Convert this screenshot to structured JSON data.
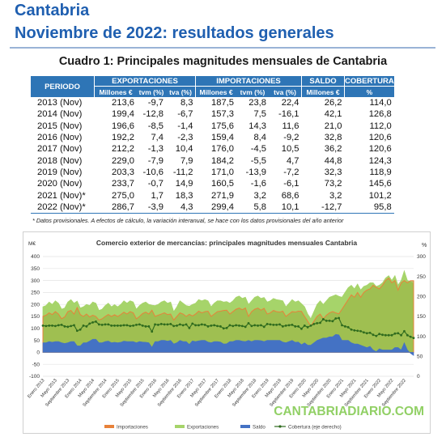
{
  "header": {
    "region": "Cantabria",
    "subtitle": "Noviembre de 2022: resultados generales",
    "table_title": "Cuadro 1: Principales magnitudes mensuales de Cantabria"
  },
  "table": {
    "group_headers": [
      "PERIODO",
      "EXPORTACIONES",
      "IMPORTACIONES",
      "SALDO",
      "COBERTURA"
    ],
    "sub_headers": [
      "Millones €",
      "tvm (%)",
      "tva (%)",
      "Millones €",
      "tvm (%)",
      "tva (%)",
      "Millones €",
      "%"
    ],
    "rows": [
      [
        "2013 (Nov)",
        "213,6",
        "-9,7",
        "8,3",
        "187,5",
        "23,8",
        "22,4",
        "26,2",
        "114,0"
      ],
      [
        "2014 (Nov)",
        "199,4",
        "-12,8",
        "-6,7",
        "157,3",
        "7,5",
        "-16,1",
        "42,1",
        "126,8"
      ],
      [
        "2015 (Nov)",
        "196,6",
        "-8,5",
        "-1,4",
        "175,6",
        "14,3",
        "11,6",
        "21,0",
        "112,0"
      ],
      [
        "2016 (Nov)",
        "192,2",
        "7,4",
        "-2,3",
        "159,4",
        "8,4",
        "-9,2",
        "32,8",
        "120,6"
      ],
      [
        "2017 (Nov)",
        "212,2",
        "-1,3",
        "10,4",
        "176,0",
        "-4,5",
        "10,5",
        "36,2",
        "120,6"
      ],
      [
        "2018 (Nov)",
        "229,0",
        "-7,9",
        "7,9",
        "184,2",
        "-5,5",
        "4,7",
        "44,8",
        "124,3"
      ],
      [
        "2019 (Nov)",
        "203,3",
        "-10,6",
        "-11,2",
        "171,0",
        "-13,9",
        "-7,2",
        "32,3",
        "118,9"
      ],
      [
        "2020 (Nov)",
        "233,7",
        "-0,7",
        "14,9",
        "160,5",
        "-1,6",
        "-6,1",
        "73,2",
        "145,6"
      ],
      [
        "2021 (Nov)*",
        "275,0",
        "1,7",
        "18,3",
        "271,9",
        "3,2",
        "68,6",
        "3,2",
        "101,2"
      ],
      [
        "2022 (Nov)*",
        "286,7",
        "-3,9",
        "4,3",
        "299,4",
        "5,8",
        "10,1",
        "-12,7",
        "95,8"
      ]
    ],
    "note": "* Datos provisionales. A efectos de cálculo, la variación interanual, se hace con los datos provisionales del año anterior"
  },
  "watermark": "CANTABRIADIARIO.COM",
  "colors": {
    "brand_blue": "#1f5fb0",
    "header_fill": "#2e75b6",
    "importaciones": "#e8823a",
    "exportaciones": "#a6d46a",
    "saldo": "#4472c4",
    "cobertura": "#2f6b1e",
    "watermark": "#7ec84a"
  },
  "chart_data": {
    "type": "area",
    "title": "Comercio exterior de mercancías: principales magnitudes mensuales Cantabria",
    "y_left_unit": "M€",
    "y_right_unit": "%",
    "y_left_ticks": [
      -100,
      -50,
      0,
      50,
      100,
      150,
      200,
      250,
      300,
      350,
      400
    ],
    "y_right_ticks": [
      0,
      50,
      100,
      150,
      200,
      250,
      300
    ],
    "ylim": [
      -100,
      400
    ],
    "ylim_right": [
      0,
      300
    ],
    "grid": true,
    "legend_position": "bottom",
    "x_start": "Enero 2013",
    "x_end": "Noviembre 2022",
    "x_labels": [
      "Enero 2013",
      "Mayo 2013",
      "Septiembre 2013",
      "Enero 2014",
      "Mayo 2014",
      "Septiembre 2014",
      "Enero 2015",
      "Mayo 2015",
      "Septiembre 2015",
      "Enero 2016",
      "Mayo 2016",
      "Septiembre 2016",
      "Enero 2017",
      "Mayo 2017",
      "Septiembre 2017",
      "Enero 2018",
      "Mayo 2018",
      "Septiembre 2018",
      "Enero 2019",
      "Mayo 2019",
      "Septiembre 2019",
      "Enero 2020",
      "Mayo 2020",
      "Septiembre 2020",
      "Enero 2021",
      "Mayo 2021",
      "Septiembre 2021",
      "Enero 2022",
      "Mayo 2022",
      "Septiembre 2022"
    ],
    "series": [
      {
        "name": "Importaciones",
        "axis": "left",
        "values": [
          150,
          155,
          165,
          158,
          170,
          160,
          140,
          148,
          170,
          175,
          160,
          187,
          158,
          150,
          160,
          148,
          155,
          150,
          135,
          140,
          150,
          158,
          150,
          157,
          150,
          158,
          168,
          160,
          170,
          165,
          140,
          150,
          162,
          168,
          160,
          176,
          150,
          155,
          160,
          165,
          158,
          160,
          135,
          150,
          165,
          160,
          150,
          159,
          152,
          160,
          172,
          165,
          170,
          172,
          150,
          160,
          170,
          172,
          175,
          176,
          160,
          170,
          180,
          185,
          178,
          185,
          150,
          170,
          180,
          185,
          176,
          184,
          160,
          165,
          175,
          170,
          168,
          172,
          150,
          160,
          170,
          168,
          172,
          171,
          150,
          130,
          110,
          130,
          150,
          160,
          140,
          155,
          165,
          170,
          165,
          161,
          180,
          200,
          220,
          240,
          230,
          250,
          230,
          250,
          260,
          265,
          280,
          272,
          265,
          280,
          300,
          310,
          290,
          300,
          260,
          290,
          300,
          290,
          299,
          299
        ]
      },
      {
        "name": "Exportaciones",
        "axis": "left",
        "values": [
          190,
          195,
          210,
          200,
          215,
          205,
          180,
          185,
          210,
          220,
          205,
          214,
          185,
          190,
          200,
          195,
          210,
          205,
          175,
          180,
          195,
          205,
          190,
          199,
          190,
          200,
          215,
          205,
          215,
          210,
          180,
          195,
          205,
          210,
          200,
          197,
          195,
          200,
          210,
          215,
          205,
          210,
          170,
          190,
          215,
          205,
          195,
          192,
          200,
          205,
          220,
          215,
          220,
          215,
          190,
          205,
          215,
          215,
          210,
          212,
          205,
          215,
          230,
          235,
          225,
          230,
          200,
          215,
          230,
          235,
          225,
          229,
          210,
          215,
          225,
          220,
          218,
          215,
          190,
          205,
          220,
          210,
          215,
          203,
          190,
          160,
          140,
          170,
          200,
          215,
          200,
          215,
          230,
          235,
          240,
          234,
          230,
          250,
          270,
          280,
          265,
          285,
          260,
          275,
          280,
          290,
          290,
          275,
          280,
          290,
          310,
          320,
          300,
          320,
          280,
          300,
          340,
          300,
          295,
          287
        ]
      },
      {
        "name": "Saldo",
        "axis": "left",
        "values": [
          40,
          40,
          45,
          42,
          45,
          45,
          40,
          37,
          40,
          45,
          45,
          27,
          27,
          40,
          40,
          47,
          55,
          55,
          40,
          40,
          45,
          47,
          40,
          42,
          40,
          42,
          47,
          45,
          45,
          45,
          40,
          45,
          43,
          42,
          40,
          21,
          45,
          45,
          50,
          50,
          47,
          50,
          35,
          40,
          50,
          45,
          45,
          33,
          48,
          45,
          48,
          50,
          50,
          43,
          40,
          45,
          45,
          43,
          35,
          36,
          45,
          45,
          50,
          50,
          47,
          45,
          50,
          45,
          50,
          50,
          49,
          45,
          50,
          50,
          50,
          50,
          50,
          43,
          40,
          45,
          50,
          42,
          43,
          32,
          40,
          30,
          30,
          40,
          50,
          55,
          60,
          60,
          65,
          65,
          75,
          73,
          50,
          50,
          50,
          40,
          35,
          35,
          30,
          25,
          20,
          25,
          10,
          3,
          15,
          10,
          10,
          10,
          10,
          20,
          20,
          10,
          40,
          10,
          -4,
          -13
        ]
      },
      {
        "name": "Cobertura (eje derecho)",
        "axis": "right",
        "values": [
          127,
          126,
          127,
          127,
          126,
          128,
          129,
          125,
          124,
          126,
          128,
          114,
          117,
          127,
          125,
          132,
          135,
          137,
          130,
          129,
          130,
          130,
          127,
          127,
          127,
          127,
          128,
          128,
          126,
          127,
          129,
          130,
          127,
          125,
          125,
          112,
          130,
          129,
          131,
          130,
          130,
          131,
          126,
          127,
          130,
          128,
          130,
          121,
          132,
          128,
          128,
          130,
          129,
          125,
          127,
          128,
          126,
          125,
          120,
          121,
          128,
          126,
          128,
          127,
          126,
          124,
          133,
          126,
          128,
          127,
          128,
          124,
          131,
          130,
          129,
          129,
          130,
          125,
          127,
          128,
          129,
          125,
          125,
          119,
          127,
          123,
          127,
          131,
          133,
          134,
          143,
          139,
          139,
          138,
          145,
          146,
          128,
          125,
          123,
          117,
          115,
          114,
          113,
          110,
          108,
          109,
          104,
          101,
          106,
          104,
          103,
          103,
          103,
          107,
          108,
          103,
          113,
          103,
          99,
          96
        ]
      }
    ]
  }
}
